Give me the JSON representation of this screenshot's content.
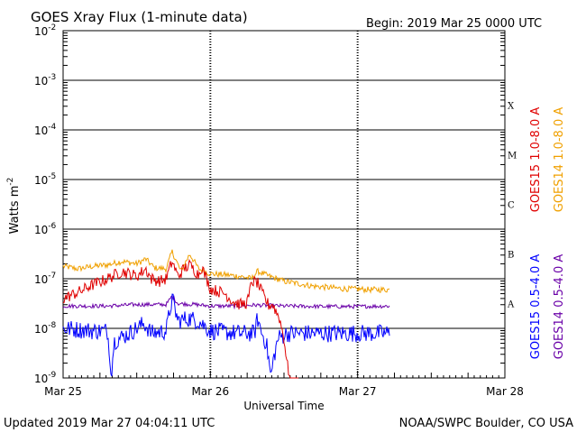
{
  "title": "GOES Xray Flux (1-minute data)",
  "begin_label": "Begin:  2019 Mar 25 0000 UTC",
  "footer_left": "Updated 2019 Mar 27 04:04:11 UTC",
  "footer_right": "NOAA/SWPC Boulder, CO USA",
  "chart_data": {
    "type": "line",
    "title": "GOES Xray Flux (1-minute data)",
    "xlabel": "Universal Time",
    "ylabel_base": "Watts m",
    "ylabel_exp": "-2",
    "yscale": "log",
    "ylim_exp": [
      -9,
      -2
    ],
    "xlim_days": [
      0,
      3
    ],
    "x_ticks": [
      {
        "day": 0,
        "label": "Mar 25"
      },
      {
        "day": 1,
        "label": "Mar 26"
      },
      {
        "day": 2,
        "label": "Mar 27"
      },
      {
        "day": 3,
        "label": "Mar 28"
      }
    ],
    "y_ticks": [
      {
        "exp": -9,
        "base": "10",
        "sup": "-9"
      },
      {
        "exp": -8,
        "base": "10",
        "sup": "-8"
      },
      {
        "exp": -7,
        "base": "10",
        "sup": "-7"
      },
      {
        "exp": -6,
        "base": "10",
        "sup": "-6"
      },
      {
        "exp": -5,
        "base": "10",
        "sup": "-5"
      },
      {
        "exp": -4,
        "base": "10",
        "sup": "-4"
      },
      {
        "exp": -3,
        "base": "10",
        "sup": "-3"
      },
      {
        "exp": -2,
        "base": "10",
        "sup": "-2"
      }
    ],
    "flare_classes": [
      {
        "label": "X",
        "exp": -3.5
      },
      {
        "label": "M",
        "exp": -4.5
      },
      {
        "label": "C",
        "exp": -5.5
      },
      {
        "label": "B",
        "exp": -6.5
      },
      {
        "label": "A",
        "exp": -7.5
      }
    ],
    "grid": true,
    "legend_position": "right, vertical",
    "series": [
      {
        "name": "GOES15 1.0-8.0 A",
        "color": "#e00000",
        "noise": 0.12,
        "points": [
          [
            0.0,
            -7.4
          ],
          [
            0.08,
            -7.3
          ],
          [
            0.12,
            -7.25
          ],
          [
            0.18,
            -7.15
          ],
          [
            0.3,
            -7.0
          ],
          [
            0.4,
            -6.85
          ],
          [
            0.45,
            -6.9
          ],
          [
            0.5,
            -6.95
          ],
          [
            0.56,
            -6.8
          ],
          [
            0.6,
            -7.0
          ],
          [
            0.66,
            -7.05
          ],
          [
            0.7,
            -7.0
          ],
          [
            0.74,
            -6.65
          ],
          [
            0.78,
            -6.95
          ],
          [
            0.82,
            -6.8
          ],
          [
            0.86,
            -6.72
          ],
          [
            0.92,
            -6.92
          ],
          [
            0.94,
            -6.75
          ],
          [
            1.0,
            -7.2
          ],
          [
            1.05,
            -7.25
          ],
          [
            1.1,
            -7.3
          ],
          [
            1.15,
            -7.45
          ],
          [
            1.2,
            -7.52
          ],
          [
            1.24,
            -7.5
          ],
          [
            1.26,
            -7.4
          ],
          [
            1.28,
            -7.05
          ],
          [
            1.32,
            -7.08
          ],
          [
            1.35,
            -7.28
          ],
          [
            1.38,
            -7.45
          ],
          [
            1.4,
            -7.55
          ],
          [
            1.42,
            -7.5
          ],
          [
            1.44,
            -7.62
          ],
          [
            1.47,
            -7.8
          ],
          [
            1.5,
            -8.2
          ],
          [
            1.52,
            -8.7
          ],
          [
            1.54,
            -9.0
          ],
          [
            1.6,
            -9.0
          ]
        ]
      },
      {
        "name": "GOES14 1.0-8.0 A",
        "color": "#f0a000",
        "noise": 0.06,
        "points": [
          [
            0.0,
            -6.75
          ],
          [
            0.1,
            -6.8
          ],
          [
            0.2,
            -6.75
          ],
          [
            0.3,
            -6.72
          ],
          [
            0.4,
            -6.65
          ],
          [
            0.5,
            -6.7
          ],
          [
            0.56,
            -6.6
          ],
          [
            0.62,
            -6.78
          ],
          [
            0.7,
            -6.8
          ],
          [
            0.74,
            -6.45
          ],
          [
            0.8,
            -6.85
          ],
          [
            0.86,
            -6.5
          ],
          [
            0.92,
            -6.8
          ],
          [
            1.0,
            -6.9
          ],
          [
            1.1,
            -6.92
          ],
          [
            1.2,
            -6.95
          ],
          [
            1.28,
            -7.0
          ],
          [
            1.32,
            -6.85
          ],
          [
            1.4,
            -6.95
          ],
          [
            1.5,
            -7.05
          ],
          [
            1.7,
            -7.15
          ],
          [
            1.9,
            -7.2
          ],
          [
            2.1,
            -7.22
          ],
          [
            2.22,
            -7.22
          ]
        ]
      },
      {
        "name": "GOES15 0.5-4.0 A",
        "color": "#0000ff",
        "noise": 0.18,
        "points": [
          [
            0.0,
            -8.0
          ],
          [
            0.2,
            -8.05
          ],
          [
            0.3,
            -8.05
          ],
          [
            0.32,
            -8.6
          ],
          [
            0.33,
            -9.0
          ],
          [
            0.34,
            -8.4
          ],
          [
            0.35,
            -8.25
          ],
          [
            0.45,
            -8.1
          ],
          [
            0.55,
            -7.9
          ],
          [
            0.6,
            -8.1
          ],
          [
            0.7,
            -8.05
          ],
          [
            0.74,
            -7.4
          ],
          [
            0.78,
            -7.85
          ],
          [
            0.85,
            -7.8
          ],
          [
            0.92,
            -7.85
          ],
          [
            1.0,
            -8.05
          ],
          [
            1.2,
            -8.1
          ],
          [
            1.3,
            -8.1
          ],
          [
            1.32,
            -7.8
          ],
          [
            1.35,
            -8.1
          ],
          [
            1.38,
            -8.3
          ],
          [
            1.4,
            -8.7
          ],
          [
            1.41,
            -9.0
          ],
          [
            1.43,
            -8.6
          ],
          [
            1.46,
            -8.2
          ],
          [
            1.52,
            -8.1
          ],
          [
            1.7,
            -8.1
          ],
          [
            2.0,
            -8.1
          ],
          [
            2.22,
            -8.1
          ]
        ]
      },
      {
        "name": "GOES14 0.5-4.0 A",
        "color": "#6a00a8",
        "noise": 0.04,
        "points": [
          [
            0.0,
            -7.55
          ],
          [
            0.3,
            -7.55
          ],
          [
            0.5,
            -7.52
          ],
          [
            0.7,
            -7.52
          ],
          [
            0.74,
            -7.35
          ],
          [
            0.78,
            -7.5
          ],
          [
            0.9,
            -7.52
          ],
          [
            1.0,
            -7.55
          ],
          [
            1.2,
            -7.55
          ],
          [
            1.3,
            -7.53
          ],
          [
            1.5,
            -7.55
          ],
          [
            1.8,
            -7.56
          ],
          [
            2.0,
            -7.56
          ],
          [
            2.22,
            -7.55
          ]
        ]
      }
    ]
  }
}
